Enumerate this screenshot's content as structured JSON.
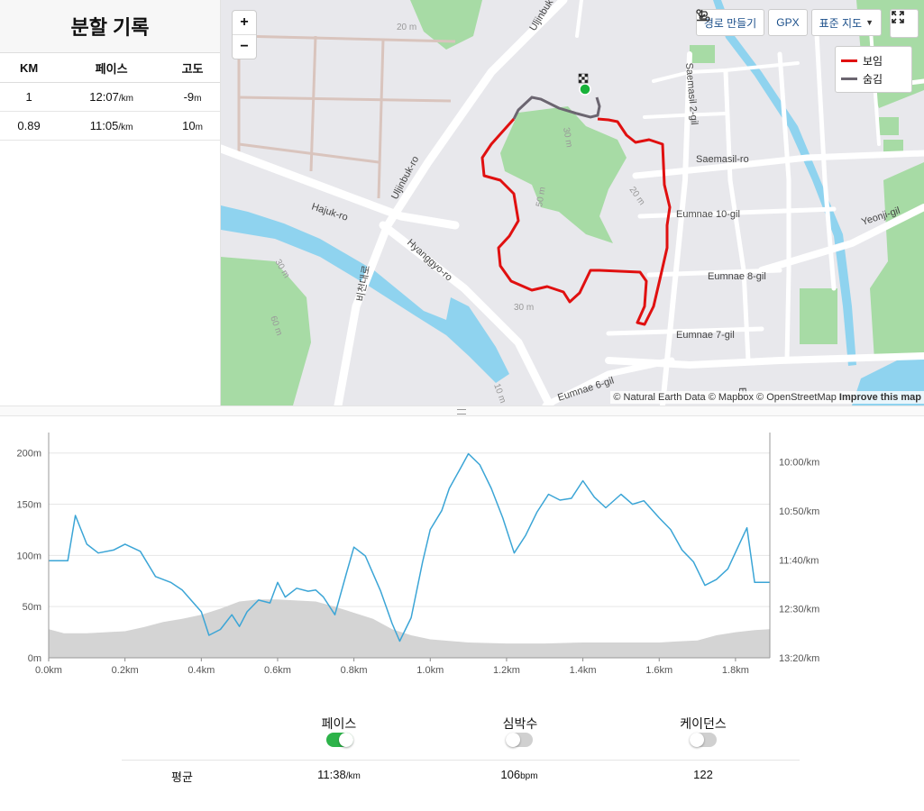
{
  "splits": {
    "title": "분할 기록",
    "headers": [
      "KM",
      "페이스",
      "고도"
    ],
    "rows": [
      {
        "km": "1",
        "pace": "12:07",
        "pace_unit": "/km",
        "elev": "-9",
        "elev_unit": "m"
      },
      {
        "km": "0.89",
        "pace": "11:05",
        "pace_unit": "/km",
        "elev": "10",
        "elev_unit": "m"
      }
    ]
  },
  "map": {
    "zoom_in": "+",
    "zoom_out": "−",
    "toolbar": {
      "route_label": "경로 만들기",
      "gpx_label": "GPX",
      "style_label": "표준 지도"
    },
    "legend": [
      {
        "label": "보임",
        "color": "#e01010"
      },
      {
        "label": "숨김",
        "color": "#6b6570"
      }
    ],
    "attribution": {
      "text": "© Natural Earth Data © Mapbox © OpenStreetMap",
      "improve": "Improve this map"
    },
    "labels": {
      "hajuk": "Hajuk-ro",
      "uljinbuk": "Uljinbuk-ro",
      "uljinbuk_top": "Uljinbuk-ro",
      "hyanggyo": "Hyanggyo-ro",
      "saemasil": "Saemasil-ro",
      "saemasil2": "Saemasil 2-gil",
      "eumnae10": "Eumnae 10-gil",
      "eumnae8": "Eumnae 8-gil",
      "eumnae7": "Eumnae 7-gil",
      "eumnae6": "Eumnae 6-gil",
      "yeonji": "Yeonji-gil",
      "korean": "비천대로",
      "c20a": "20 m",
      "c30a": "30 m",
      "c50": "50 m",
      "c20b": "20 m",
      "c30b": "30 m",
      "c60": "60 m",
      "c30c": "30 m",
      "c10": "10 m",
      "eu": "Eu"
    },
    "colors": {
      "route_visible": "#e01010",
      "route_hidden": "#6b6570",
      "park": "#a7dba5",
      "water": "#8fd3ef",
      "road": "#ffffff"
    }
  },
  "chart_data": {
    "type": "line",
    "x_unit": "km",
    "xlim": [
      0,
      1.89
    ],
    "x_ticks": [
      "0.0km",
      "0.2km",
      "0.4km",
      "0.6km",
      "0.8km",
      "1.0km",
      "1.2km",
      "1.4km",
      "1.6km",
      "1.8km"
    ],
    "y_left": {
      "label": "",
      "ylim": [
        0,
        220
      ],
      "ticks": [
        "0m",
        "50m",
        "100m",
        "150m",
        "200m"
      ]
    },
    "y_right": {
      "label": "",
      "ticks": [
        "10:00/km",
        "10:50/km",
        "11:40/km",
        "12:30/km",
        "13:20/km"
      ]
    },
    "grid": true,
    "elevation": {
      "x": [
        0,
        0.04,
        0.1,
        0.15,
        0.2,
        0.25,
        0.3,
        0.35,
        0.4,
        0.45,
        0.5,
        0.55,
        0.6,
        0.65,
        0.7,
        0.75,
        0.8,
        0.85,
        0.9,
        0.95,
        1.0,
        1.1,
        1.2,
        1.3,
        1.4,
        1.5,
        1.6,
        1.65,
        1.7,
        1.75,
        1.8,
        1.85,
        1.89
      ],
      "y": [
        28,
        24,
        24,
        25,
        26,
        30,
        35,
        38,
        42,
        48,
        55,
        57,
        57,
        56,
        55,
        50,
        44,
        38,
        28,
        22,
        18,
        15,
        14,
        14,
        15,
        15,
        15,
        16,
        17,
        22,
        25,
        27,
        28
      ],
      "color": "#d4d4d4"
    },
    "pace_series": {
      "label": "",
      "color": "#3ba5d6",
      "x": [
        0,
        0.05,
        0.07,
        0.1,
        0.13,
        0.17,
        0.2,
        0.24,
        0.28,
        0.32,
        0.35,
        0.4,
        0.42,
        0.45,
        0.48,
        0.5,
        0.52,
        0.55,
        0.58,
        0.6,
        0.62,
        0.65,
        0.68,
        0.7,
        0.72,
        0.75,
        0.78,
        0.8,
        0.83,
        0.87,
        0.9,
        0.92,
        0.95,
        0.98,
        1.0,
        1.03,
        1.05,
        1.08,
        1.1,
        1.13,
        1.16,
        1.19,
        1.22,
        1.25,
        1.28,
        1.31,
        1.34,
        1.37,
        1.4,
        1.43,
        1.46,
        1.5,
        1.53,
        1.56,
        1.6,
        1.63,
        1.66,
        1.69,
        1.72,
        1.75,
        1.78,
        1.81,
        1.83,
        1.85,
        1.89
      ],
      "pace_min_per_km": [
        11.68,
        11.68,
        10.91,
        11.4,
        11.55,
        11.5,
        11.4,
        11.52,
        11.95,
        12.05,
        12.18,
        12.55,
        12.95,
        12.85,
        12.6,
        12.8,
        12.55,
        12.35,
        12.4,
        12.05,
        12.3,
        12.15,
        12.2,
        12.18,
        12.3,
        12.6,
        11.9,
        11.45,
        11.6,
        12.2,
        12.75,
        13.05,
        12.65,
        11.7,
        11.15,
        10.83,
        10.45,
        10.1,
        9.86,
        10.05,
        10.45,
        10.95,
        11.55,
        11.25,
        10.85,
        10.55,
        10.65,
        10.62,
        10.32,
        10.6,
        10.78,
        10.55,
        10.72,
        10.66,
        10.95,
        11.15,
        11.5,
        11.7,
        12.1,
        12.0,
        11.82,
        11.4,
        11.12,
        12.05,
        12.05
      ]
    }
  },
  "stats": {
    "labels": {
      "pace": "페이스",
      "heart_rate": "심박수",
      "cadence": "케이던스"
    },
    "toggles": {
      "pace": true,
      "heart_rate": false,
      "cadence": false
    },
    "avg_label": "평균",
    "avg_pace": "11:38",
    "avg_pace_unit": "/km",
    "avg_hr": "106",
    "avg_hr_unit": "bpm",
    "avg_cadence": "122",
    "colors": {
      "toggle_on": "#2db34a",
      "toggle_off": "#d0d0d0"
    }
  }
}
